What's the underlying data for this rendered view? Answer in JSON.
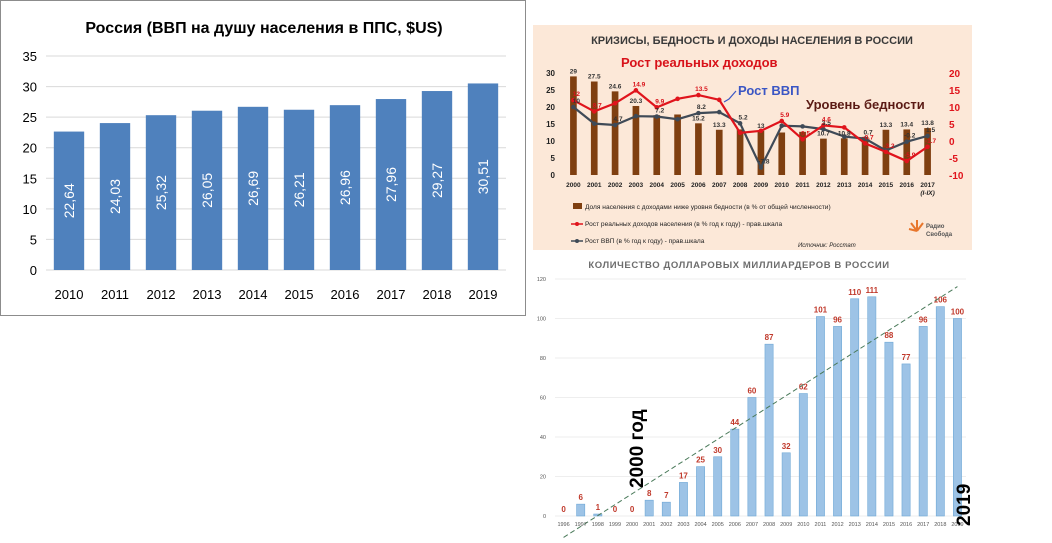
{
  "chart_data": [
    {
      "type": "bar",
      "title": "Россия (ВВП на душу населения в ППС, $US)",
      "categories": [
        "2010",
        "2011",
        "2012",
        "2013",
        "2014",
        "2015",
        "2016",
        "2017",
        "2018",
        "2019"
      ],
      "values": [
        22.64,
        24.03,
        25.32,
        26.05,
        26.69,
        26.21,
        26.96,
        27.96,
        29.27,
        30.51
      ],
      "value_labels": [
        "22,64",
        "24,03",
        "25,32",
        "26,05",
        "26,69",
        "26,21",
        "26,96",
        "27,96",
        "29,27",
        "30,51"
      ],
      "ylim": [
        0,
        35
      ],
      "yticks": [
        "0",
        "5",
        "10",
        "15",
        "20",
        "25",
        "30",
        "35"
      ],
      "grid": true,
      "colors": {
        "bar": "#4f81bd",
        "label": "#ffffff"
      }
    },
    {
      "type": "bar",
      "title": "КРИЗИСЫ, БЕДНОСТЬ И ДОХОДЫ НАСЕЛЕНИЯ В РОССИИ",
      "categories": [
        "2000",
        "2001",
        "2002",
        "2003",
        "2004",
        "2005",
        "2006",
        "2007",
        "2008",
        "2009",
        "2010",
        "2011",
        "2012",
        "2013",
        "2014",
        "2015",
        "2016",
        "2017\n(I-IX)"
      ],
      "ylim": [
        0,
        30
      ],
      "y2lim": [
        -10,
        20
      ],
      "yticks": [
        "0",
        "5",
        "10",
        "15",
        "20",
        "25",
        "30"
      ],
      "y2ticks": [
        "-10",
        "-5",
        "0",
        "5",
        "10",
        "15",
        "20"
      ],
      "series": [
        {
          "name": "Доля населения с доходами ниже уровня бедности (в % от общей численности)",
          "kind": "bar",
          "axis": "left",
          "values": [
            29,
            27.5,
            24.6,
            20.3,
            17.6,
            17.8,
            15.2,
            13.3,
            13.4,
            13,
            12.5,
            12.7,
            10.7,
            10.8,
            11.2,
            13.3,
            13.4,
            13.8
          ],
          "labels": [
            "29",
            "27.5",
            "24.6",
            "20.3",
            "",
            "",
            "15.2",
            "13.3",
            "",
            "13",
            "",
            "",
            "10.7",
            "10.8",
            "",
            "13.3",
            "13.4",
            "13.8"
          ]
        },
        {
          "name": "Рост реальных доходов населения (в % год к году) - прав.шкала",
          "kind": "line",
          "axis": "right",
          "values": [
            12,
            8.7,
            11.1,
            14.9,
            9.9,
            12.4,
            13.5,
            12.1,
            2.4,
            3,
            5.9,
            0.5,
            4.6,
            4,
            -0.7,
            -3.2,
            -5.9,
            -1.7
          ],
          "labels": [
            "12",
            "8.7",
            "",
            "14.9",
            "9.9",
            "",
            "13.5",
            "",
            "",
            "",
            "5.9",
            "0.5",
            "4.6",
            "",
            "-0.7",
            "-3.2",
            "-5.9",
            "-1.7"
          ]
        },
        {
          "name": "Рост ВВП (в % год к году) - прав.шкала",
          "kind": "line",
          "axis": "right",
          "values": [
            10,
            5.1,
            4.7,
            7.3,
            7.2,
            6.4,
            8.2,
            8.5,
            5.2,
            -7.8,
            4.5,
            4.3,
            3.5,
            1.3,
            0.7,
            -2.8,
            -0.2,
            1.5
          ],
          "labels": [
            "10",
            "",
            "4.7",
            "",
            "7.2",
            "",
            "8.2",
            "",
            "5.2",
            "-7.8",
            "",
            "",
            "3.5",
            "",
            "0.7",
            "",
            "-0.2",
            "1.5"
          ]
        }
      ],
      "annotations": [
        "Рост реальных доходов",
        "Рост ВВП",
        "Уровень бедности"
      ],
      "source": "Источник: Росстат",
      "logo_text": [
        "Радио",
        "Свобода"
      ],
      "colors": {
        "bar": "#7f3f10",
        "income": "#e0141c",
        "gdp": "#3f4a57",
        "income_ann": "#d8121a",
        "gdp_ann": "#3b56c4",
        "poverty_ann": "#5a1a14",
        "title": "#3a3a3a",
        "axis_left": "#222222",
        "axis_right": "#e0141c"
      }
    },
    {
      "type": "bar",
      "title": "КОЛИЧЕСТВО ДОЛЛАРОВЫХ МИЛЛИАРДЕРОВ В РОССИИ",
      "categories": [
        "1996",
        "1997",
        "1998",
        "1999",
        "2000",
        "2001",
        "2002",
        "2003",
        "2004",
        "2005",
        "2006",
        "2007",
        "2008",
        "2009",
        "2010",
        "2011",
        "2012",
        "2013",
        "2014",
        "2015",
        "2016",
        "2017",
        "2018",
        "2019"
      ],
      "values": [
        0,
        6,
        1,
        0,
        0,
        8,
        7,
        17,
        25,
        30,
        44,
        60,
        87,
        32,
        62,
        101,
        96,
        110,
        111,
        88,
        77,
        96,
        106,
        100
      ],
      "ylim": [
        0,
        120
      ],
      "yticks": [
        "0",
        "20",
        "40",
        "60",
        "80",
        "100",
        "120"
      ],
      "trendline": "dashed",
      "annotations": [
        "2000 год",
        "2019"
      ],
      "colors": {
        "bar": "#9dc3e6",
        "bar_edge": "#6fa8d6",
        "label": "#c0392b",
        "trend": "#4a7a5a",
        "title": "#6d6d6d"
      }
    }
  ]
}
